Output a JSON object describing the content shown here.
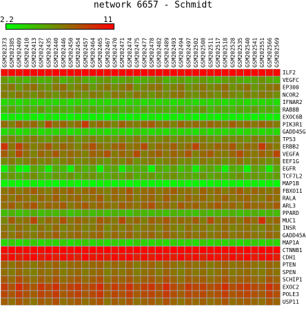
{
  "chart_data": {
    "type": "heatmap",
    "title": "network 6657 - Schmidt",
    "scale_min": "2.2",
    "scale_max": "11",
    "vmin": 2.2,
    "vmax": 11,
    "colors": {
      "low": "#00ff00",
      "mid": "#7f7f00",
      "high": "#ff0000",
      "grid": "#a0a0a0"
    },
    "columns": [
      "GSM202373",
      "GSM202385",
      "GSM202409",
      "GSM202410",
      "GSM202413",
      "GSM202427",
      "GSM202435",
      "GSM202440",
      "GSM202446",
      "GSM202450",
      "GSM202454",
      "GSM202457",
      "GSM202464",
      "GSM202465",
      "GSM202467",
      "GSM202470",
      "GSM202471",
      "GSM202474",
      "GSM202475",
      "GSM202477",
      "GSM202478",
      "GSM202482",
      "GSM202489",
      "GSM202493",
      "GSM202494",
      "GSM202497",
      "GSM202502",
      "GSM202508",
      "GSM202511",
      "GSM202517",
      "GSM202518",
      "GSM202528",
      "GSM202535",
      "GSM202540",
      "GSM202541",
      "GSM202551",
      "GSM202566",
      "GSM202569"
    ],
    "rows": [
      "ILF2",
      "VEGFC",
      "EP300",
      "NCOR2",
      "IFNAR2",
      "RAB8B",
      "EXOC6B",
      "PIK3R1",
      "GADD45G",
      "TP53",
      "ERBB2",
      "VEGFA",
      "EEF1G",
      "EGFR",
      "TCF7L2",
      "MAP1B",
      "FBXO11",
      "RALA",
      "ARL3",
      "PPARD",
      "MUC1",
      "INSR",
      "GADD45A",
      "MAP1A",
      "CTNNB1",
      "CDH1",
      "PTEN",
      "SPEN",
      "SCHIP1",
      "EXOC2",
      "POLE3",
      "USP11"
    ],
    "values": [
      [
        10.5,
        10.8,
        10.6,
        10.9,
        10.7,
        10.8,
        10.6,
        10.9,
        10.7,
        10.8,
        10.6,
        10.9,
        10.7,
        10.8,
        10.5,
        10.9,
        10.6,
        10.8,
        10.7,
        10.9,
        10.6,
        10.8,
        10.7,
        10.9,
        10.6,
        10.8,
        10.7,
        10.9,
        10.6,
        10.8,
        10.7,
        10.9,
        10.6,
        10.8,
        10.7,
        10.9,
        10.6,
        10.8
      ],
      [
        5.8,
        4.9,
        5.2,
        4.6,
        5.6,
        4.8,
        5.0,
        6.2,
        4.7,
        5.3,
        6.0,
        5.1,
        4.8,
        5.5,
        5.9,
        4.9,
        5.2,
        5.7,
        4.6,
        5.0,
        5.4,
        6.1,
        4.8,
        5.2,
        5.6,
        4.9,
        5.3,
        5.8,
        5.0,
        4.7,
        5.5,
        5.9,
        5.1,
        4.8,
        5.4,
        6.0,
        5.2,
        4.9
      ],
      [
        6.5,
        7.0,
        5.8,
        6.8,
        7.2,
        6.2,
        5.9,
        6.9,
        7.3,
        6.0,
        6.6,
        7.1,
        5.7,
        6.4,
        7.0,
        6.1,
        6.7,
        7.4,
        5.8,
        6.3,
        6.9,
        7.2,
        6.0,
        6.5,
        7.1,
        5.9,
        6.4,
        7.0,
        6.2,
        6.8,
        7.3,
        6.0,
        6.6,
        7.1,
        5.8,
        6.3,
        6.9,
        7.2
      ],
      [
        6.8,
        6.2,
        7.0,
        6.5,
        6.1,
        6.9,
        6.4,
        5.9,
        6.7,
        7.1,
        6.3,
        6.0,
        6.8,
        6.5,
        5.8,
        6.9,
        6.6,
        6.1,
        7.0,
        6.4,
        5.9,
        6.7,
        6.2,
        6.9,
        7.2,
        6.3,
        6.0,
        6.8,
        6.5,
        6.1,
        7.0,
        6.4,
        5.9,
        6.7,
        6.2,
        6.9,
        6.6,
        6.1
      ],
      [
        3.5,
        3.8,
        3.3,
        3.9,
        3.6,
        3.4,
        3.7,
        3.5,
        3.8,
        3.3,
        3.6,
        3.9,
        3.4,
        3.7,
        3.5,
        3.8,
        3.3,
        3.6,
        3.9,
        3.4,
        3.7,
        3.5,
        3.8,
        3.3,
        3.6,
        3.9,
        3.4,
        3.7,
        3.5,
        3.8,
        3.3,
        3.6,
        3.9,
        3.4,
        3.7,
        3.5,
        3.8,
        3.3
      ],
      [
        4.8,
        5.5,
        4.5,
        5.2,
        4.9,
        5.8,
        4.6,
        5.3,
        5.0,
        4.7,
        5.6,
        4.9,
        5.4,
        4.6,
        5.1,
        5.7,
        4.8,
        5.2,
        4.5,
        5.5,
        4.9,
        5.3,
        5.0,
        4.7,
        5.6,
        4.8,
        5.2,
        5.9,
        4.6,
        5.4,
        5.0,
        4.7,
        5.3,
        4.9,
        5.6,
        4.8,
        5.2,
        4.6
      ],
      [
        2.6,
        3.0,
        2.7,
        2.9,
        2.8,
        2.5,
        3.1,
        2.7,
        2.9,
        2.6,
        3.0,
        2.8,
        2.7,
        2.9,
        2.5,
        3.0,
        2.8,
        2.6,
        2.9,
        2.7,
        3.0,
        2.8,
        2.6,
        2.9,
        2.7,
        3.0,
        2.5,
        2.8,
        2.9,
        2.6,
        3.0,
        2.7,
        2.8,
        2.9,
        2.6,
        3.0,
        2.7,
        2.8
      ],
      [
        7.2,
        6.5,
        7.8,
        6.9,
        7.4,
        6.2,
        8.6,
        7.0,
        7.6,
        6.7,
        7.3,
        9.0,
        6.8,
        7.5,
        7.1,
        6.4,
        7.7,
        7.0,
        6.6,
        7.4,
        7.9,
        6.9,
        7.2,
        6.5,
        7.6,
        7.0,
        7.3,
        6.8,
        7.5,
        7.1,
        6.6,
        7.8,
        7.0,
        7.3,
        6.9,
        7.6,
        7.2,
        6.7
      ],
      [
        3.4,
        3.9,
        3.2,
        3.6,
        4.0,
        3.3,
        3.7,
        3.5,
        3.8,
        3.2,
        3.6,
        3.9,
        3.4,
        3.7,
        3.3,
        3.8,
        3.5,
        3.2,
        3.9,
        3.6,
        3.4,
        3.7,
        3.3,
        3.8,
        3.5,
        3.6,
        3.2,
        3.9,
        3.4,
        3.7,
        3.5,
        3.8,
        3.3,
        3.6,
        3.9,
        3.4,
        3.7,
        3.5
      ],
      [
        6.0,
        6.6,
        5.8,
        6.3,
        6.9,
        6.1,
        5.7,
        6.5,
        6.2,
        6.8,
        5.9,
        6.4,
        6.7,
        6.0,
        6.3,
        5.8,
        6.6,
        6.1,
        6.9,
        5.7,
        6.4,
        6.2,
        6.8,
        5.9,
        6.5,
        6.3,
        6.0,
        6.7,
        6.1,
        5.8,
        6.6,
        6.2,
        6.4,
        5.9,
        6.8,
        6.3,
        6.0,
        6.5
      ],
      [
        9.2,
        7.0,
        8.8,
        7.4,
        6.6,
        7.2,
        8.0,
        6.8,
        7.6,
        7.0,
        6.4,
        7.3,
        8.2,
        7.1,
        6.7,
        7.5,
        7.9,
        6.9,
        7.2,
        8.4,
        6.6,
        7.4,
        7.0,
        7.8,
        6.8,
        7.3,
        8.6,
        7.1,
        6.9,
        7.6,
        7.2,
        8.0,
        6.7,
        7.4,
        7.1,
        9.0,
        7.3,
        6.8
      ],
      [
        7.8,
        6.8,
        8.5,
        7.2,
        6.5,
        7.6,
        7.0,
        8.0,
        6.9,
        7.4,
        7.1,
        6.6,
        7.7,
        7.3,
        8.2,
        6.8,
        7.5,
        7.0,
        8.4,
        6.7,
        7.3,
        7.8,
        6.9,
        7.6,
        7.1,
        8.1,
        6.6,
        7.4,
        7.9,
        7.0,
        6.8,
        7.5,
        8.3,
        7.2,
        6.9,
        7.7,
        7.1,
        8.6
      ],
      [
        6.2,
        6.8,
        6.0,
        6.5,
        7.1,
        6.3,
        6.7,
        5.9,
        6.6,
        7.0,
        6.1,
        6.4,
        6.9,
        6.2,
        5.8,
        6.7,
        6.3,
        7.2,
        6.0,
        6.5,
        6.8,
        6.1,
        6.6,
        7.0,
        6.2,
        6.4,
        5.9,
        6.9,
        6.3,
        6.7,
        6.0,
        6.5,
        7.1,
        6.2,
        6.8,
        6.4,
        6.0,
        6.6
      ],
      [
        2.5,
        4.8,
        2.6,
        2.4,
        5.2,
        4.6,
        2.8,
        5.0,
        4.4,
        2.7,
        5.4,
        4.7,
        5.1,
        2.6,
        4.9,
        5.3,
        2.9,
        4.5,
        5.0,
        4.8,
        2.5,
        5.2,
        4.6,
        5.5,
        4.3,
        5.1,
        2.8,
        4.9,
        5.3,
        4.4,
        2.6,
        5.0,
        4.7,
        2.5,
        5.4,
        4.8,
        2.9,
        5.2
      ],
      [
        5.2,
        5.8,
        5.0,
        5.5,
        6.1,
        5.3,
        4.9,
        5.7,
        5.4,
        6.0,
        5.1,
        5.6,
        5.9,
        5.2,
        4.8,
        5.7,
        5.4,
        6.2,
        5.0,
        5.5,
        5.8,
        5.1,
        5.6,
        6.0,
        5.3,
        5.4,
        4.9,
        5.9,
        5.2,
        5.7,
        5.0,
        5.5,
        6.1,
        5.2,
        5.8,
        5.4,
        5.0,
        5.6
      ],
      [
        2.5,
        2.7,
        2.4,
        2.6,
        2.8,
        2.5,
        2.7,
        2.4,
        2.6,
        2.8,
        2.5,
        2.7,
        2.4,
        2.6,
        2.8,
        2.5,
        2.7,
        2.4,
        2.6,
        2.8,
        2.5,
        2.7,
        2.4,
        2.6,
        2.8,
        2.5,
        2.7,
        2.4,
        2.6,
        2.8,
        2.5,
        2.7,
        2.4,
        2.6,
        2.8,
        2.5,
        2.7,
        2.4
      ],
      [
        7.0,
        7.6,
        6.8,
        7.3,
        7.9,
        7.1,
        6.7,
        7.5,
        7.2,
        7.8,
        6.9,
        7.4,
        7.7,
        7.0,
        6.6,
        7.5,
        7.2,
        8.0,
        6.8,
        7.3,
        7.6,
        6.9,
        7.4,
        7.8,
        7.1,
        7.2,
        6.7,
        7.7,
        7.0,
        7.5,
        6.8,
        7.3,
        7.9,
        7.0,
        7.6,
        7.2,
        6.8,
        7.4
      ],
      [
        7.4,
        6.9,
        7.7,
        7.1,
        6.7,
        7.5,
        7.0,
        7.8,
        6.8,
        7.3,
        7.6,
        6.9,
        7.2,
        7.9,
        6.7,
        7.4,
        7.0,
        7.7,
        6.8,
        7.3,
        7.5,
        6.9,
        7.8,
        7.1,
        6.7,
        7.6,
        7.0,
        7.4,
        6.8,
        7.2,
        7.7,
        6.9,
        7.3,
        7.5,
        7.0,
        6.8,
        7.6,
        7.1
      ],
      [
        7.2,
        7.8,
        6.9,
        7.5,
        8.1,
        7.0,
        7.6,
        7.3,
        7.9,
        6.8,
        7.4,
        8.0,
        7.1,
        7.7,
        7.2,
        6.9,
        7.8,
        7.4,
        7.0,
        7.6,
        8.2,
        7.1,
        7.5,
        6.9,
        7.9,
        7.3,
        7.7,
        7.0,
        7.4,
        8.0,
        7.2,
        7.6,
        6.9,
        7.8,
        7.3,
        7.5,
        7.1,
        7.9
      ],
      [
        4.5,
        4.9,
        4.3,
        4.7,
        5.0,
        4.4,
        4.8,
        4.6,
        4.9,
        4.3,
        4.7,
        5.1,
        4.5,
        4.8,
        4.4,
        4.9,
        4.6,
        4.3,
        5.0,
        4.7,
        4.5,
        4.8,
        4.4,
        4.9,
        4.6,
        4.7,
        4.3,
        5.0,
        4.5,
        4.8,
        4.6,
        4.9,
        4.4,
        4.7,
        5.0,
        4.5,
        4.8,
        4.6
      ],
      [
        6.4,
        7.8,
        6.8,
        7.2,
        8.6,
        6.6,
        7.4,
        7.0,
        8.2,
        6.9,
        7.6,
        7.1,
        6.7,
        7.9,
        7.3,
        6.8,
        8.4,
        7.0,
        7.5,
        6.6,
        7.7,
        7.2,
        8.0,
        6.9,
        7.4,
        7.1,
        7.8,
        6.7,
        8.3,
        7.0,
        7.6,
        7.3,
        6.8,
        7.9,
        7.2,
        9.4,
        7.0,
        7.5
      ],
      [
        7.0,
        6.5,
        7.3,
        6.8,
        6.3,
        7.1,
        6.6,
        7.4,
        6.4,
        6.9,
        7.2,
        6.5,
        6.8,
        7.5,
        6.3,
        7.0,
        6.6,
        7.3,
        6.4,
        6.9,
        7.1,
        6.5,
        7.4,
        6.7,
        6.3,
        7.2,
        6.6,
        7.0,
        6.4,
        6.8,
        7.3,
        6.5,
        6.9,
        7.1,
        6.6,
        6.4,
        7.2,
        6.7
      ],
      [
        7.3,
        6.9,
        7.6,
        7.0,
        6.7,
        7.4,
        7.1,
        7.8,
        6.8,
        7.2,
        7.5,
        6.9,
        7.3,
        7.7,
        6.7,
        7.4,
        7.0,
        7.6,
        6.8,
        7.2,
        7.5,
        6.9,
        7.7,
        7.1,
        6.7,
        7.4,
        7.0,
        7.3,
        6.8,
        7.2,
        7.6,
        6.9,
        7.2,
        7.4,
        7.0,
        6.8,
        7.5,
        7.1
      ],
      [
        3.6,
        4.0,
        3.4,
        3.8,
        4.1,
        3.5,
        3.9,
        3.7,
        4.0,
        3.4,
        3.8,
        4.2,
        3.6,
        3.9,
        3.5,
        4.0,
        3.7,
        3.4,
        4.1,
        3.8,
        3.6,
        3.9,
        3.5,
        4.0,
        3.7,
        3.8,
        3.4,
        4.1,
        3.6,
        3.9,
        3.7,
        4.0,
        3.5,
        3.8,
        4.1,
        3.6,
        3.9,
        3.7
      ],
      [
        10.6,
        10.9,
        10.7,
        10.5,
        10.8,
        10.6,
        10.9,
        10.7,
        10.8,
        10.5,
        10.9,
        10.6,
        10.8,
        10.7,
        10.9,
        10.5,
        10.8,
        10.6,
        10.9,
        10.7,
        10.5,
        10.8,
        10.6,
        10.9,
        10.7,
        10.8,
        10.5,
        10.9,
        10.6,
        10.8,
        10.7,
        10.9,
        10.5,
        10.8,
        10.6,
        10.9,
        10.7,
        10.8
      ],
      [
        10.2,
        10.6,
        9.9,
        10.4,
        10.7,
        10.1,
        10.5,
        10.0,
        10.6,
        10.3,
        9.8,
        10.7,
        10.2,
        10.4,
        10.0,
        10.6,
        10.3,
        10.8,
        9.9,
        10.5,
        10.1,
        10.6,
        10.3,
        10.0,
        10.7,
        10.2,
        10.4,
        9.9,
        10.6,
        10.3,
        10.0,
        10.5,
        10.2,
        10.7,
        10.1,
        10.4,
        10.6,
        10.0
      ],
      [
        7.6,
        7.0,
        7.8,
        7.2,
        6.9,
        7.5,
        7.1,
        7.7,
        6.8,
        7.3,
        7.6,
        7.0,
        7.4,
        7.8,
        6.9,
        7.5,
        7.1,
        7.7,
        6.8,
        7.3,
        7.6,
        7.0,
        7.8,
        7.2,
        6.9,
        7.5,
        7.1,
        7.4,
        6.8,
        7.3,
        7.7,
        7.0,
        7.3,
        7.5,
        7.1,
        6.9,
        7.6,
        7.2
      ],
      [
        7.2,
        6.8,
        7.5,
        6.9,
        6.6,
        7.3,
        7.0,
        7.6,
        6.7,
        7.1,
        7.4,
        6.8,
        7.2,
        7.6,
        6.6,
        7.3,
        6.9,
        7.5,
        6.7,
        7.1,
        7.4,
        6.8,
        7.6,
        7.0,
        6.6,
        7.3,
        6.9,
        7.2,
        6.7,
        7.1,
        7.5,
        6.8,
        7.1,
        7.3,
        6.9,
        6.7,
        7.4,
        7.0
      ],
      [
        8.0,
        7.3,
        8.4,
        7.6,
        7.1,
        7.9,
        7.4,
        8.2,
        7.2,
        7.7,
        8.0,
        7.3,
        7.8,
        8.3,
        7.1,
        7.9,
        7.5,
        8.1,
        7.2,
        7.7,
        8.0,
        7.4,
        8.3,
        7.6,
        7.1,
        7.9,
        7.5,
        7.8,
        7.2,
        7.6,
        8.2,
        7.3,
        7.7,
        7.9,
        7.4,
        7.2,
        8.1,
        7.6
      ],
      [
        9.0,
        8.2,
        9.6,
        8.5,
        8.0,
        9.2,
        8.6,
        9.4,
        8.1,
        8.8,
        9.1,
        8.3,
        8.7,
        9.5,
        8.0,
        9.0,
        8.4,
        9.3,
        8.2,
        8.9,
        9.2,
        8.3,
        9.6,
        8.5,
        8.0,
        9.1,
        8.6,
        8.8,
        8.2,
        8.7,
        9.4,
        8.3,
        8.9,
        9.1,
        8.5,
        8.2,
        9.3,
        8.6
      ],
      [
        8.5,
        8.0,
        8.9,
        8.2,
        7.8,
        8.7,
        8.3,
        9.0,
        7.9,
        8.4,
        8.8,
        8.0,
        8.5,
        9.1,
        7.8,
        8.6,
        8.2,
        8.9,
        7.9,
        8.4,
        8.7,
        8.1,
        9.0,
        8.3,
        7.8,
        8.6,
        8.2,
        8.5,
        7.9,
        8.3,
        8.9,
        8.0,
        8.4,
        8.7,
        8.2,
        7.9,
        8.8,
        8.3
      ],
      [
        7.8,
        7.2,
        8.1,
        7.4,
        7.0,
        7.9,
        7.5,
        8.3,
        7.1,
        7.6,
        8.0,
        7.2,
        7.7,
        8.2,
        7.0,
        7.8,
        7.4,
        8.1,
        7.1,
        7.6,
        7.9,
        7.3,
        8.2,
        7.5,
        7.0,
        7.8,
        7.4,
        7.7,
        7.1,
        7.5,
        8.1,
        7.2,
        7.6,
        7.9,
        7.4,
        7.1,
        8.0,
        7.5
      ]
    ]
  }
}
